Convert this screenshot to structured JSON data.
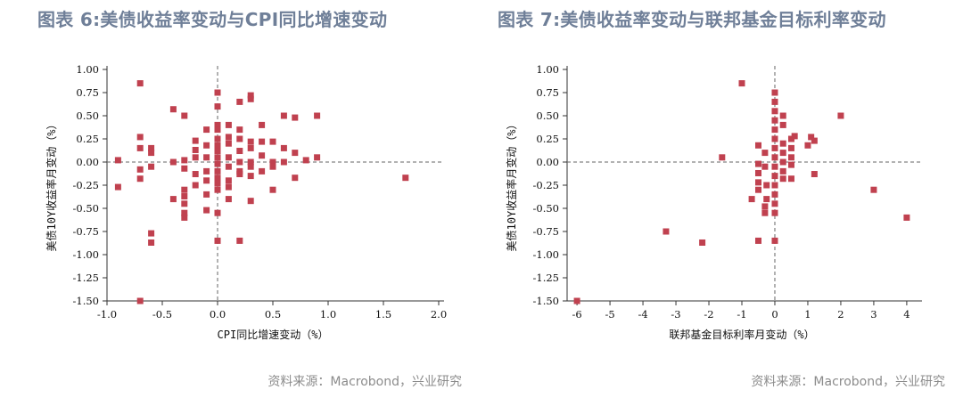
{
  "colors": {
    "marker": "#c0414f",
    "axis": "#333333",
    "title": "#6f7f98",
    "source": "#8c8c8c"
  },
  "source_text": "资料来源：Macrobond，兴业研究",
  "chart_data": [
    {
      "type": "scatter",
      "title": "图表 6:美债收益率变动与CPI同比增速变动",
      "xlabel": "CPI同比增速变动（%）",
      "ylabel": "美债10Y收益率月变动（%）",
      "xlim": [
        -1.0,
        2.0
      ],
      "ylim": [
        -1.5,
        1.0
      ],
      "x_ticks": [
        "-1.0",
        "-0.5",
        "0.0",
        "0.5",
        "1.0",
        "1.5",
        "2.0"
      ],
      "y_ticks": [
        "1.00",
        "0.75",
        "0.50",
        "0.25",
        "0.00",
        "-0.25",
        "-0.50",
        "-0.75",
        "-1.00",
        "-1.25",
        "-1.50"
      ],
      "reference_lines": {
        "x": 0,
        "y": 0
      },
      "points": [
        [
          -0.7,
          0.85
        ],
        [
          -0.7,
          -1.5
        ],
        [
          -0.9,
          0.02
        ],
        [
          -0.9,
          -0.27
        ],
        [
          -0.7,
          0.27
        ],
        [
          -0.7,
          0.15
        ],
        [
          -0.7,
          -0.08
        ],
        [
          -0.7,
          -0.18
        ],
        [
          -0.6,
          0.15
        ],
        [
          -0.6,
          0.1
        ],
        [
          -0.6,
          -0.05
        ],
        [
          -0.6,
          -0.77
        ],
        [
          -0.6,
          -0.87
        ],
        [
          -0.4,
          0.57
        ],
        [
          -0.4,
          0.0
        ],
        [
          -0.4,
          -0.4
        ],
        [
          -0.3,
          0.5
        ],
        [
          -0.3,
          0.02
        ],
        [
          -0.3,
          -0.07
        ],
        [
          -0.3,
          -0.3
        ],
        [
          -0.3,
          -0.37
        ],
        [
          -0.3,
          -0.45
        ],
        [
          -0.3,
          -0.55
        ],
        [
          -0.3,
          -0.6
        ],
        [
          -0.2,
          0.23
        ],
        [
          -0.2,
          0.13
        ],
        [
          -0.2,
          0.05
        ],
        [
          -0.2,
          -0.13
        ],
        [
          -0.2,
          -0.25
        ],
        [
          -0.1,
          0.35
        ],
        [
          -0.1,
          0.18
        ],
        [
          -0.1,
          0.05
        ],
        [
          -0.1,
          -0.1
        ],
        [
          -0.1,
          -0.2
        ],
        [
          -0.1,
          -0.35
        ],
        [
          -0.1,
          -0.52
        ],
        [
          0.0,
          0.75
        ],
        [
          0.0,
          0.6
        ],
        [
          0.0,
          0.4
        ],
        [
          0.0,
          0.35
        ],
        [
          0.0,
          0.25
        ],
        [
          0.0,
          0.18
        ],
        [
          0.0,
          0.12
        ],
        [
          0.0,
          0.05
        ],
        [
          0.0,
          -0.02
        ],
        [
          0.0,
          -0.1
        ],
        [
          0.0,
          -0.17
        ],
        [
          0.0,
          -0.23
        ],
        [
          0.0,
          -0.3
        ],
        [
          0.0,
          -0.55
        ],
        [
          0.0,
          -0.85
        ],
        [
          0.1,
          0.4
        ],
        [
          0.1,
          0.27
        ],
        [
          0.1,
          0.2
        ],
        [
          0.1,
          0.05
        ],
        [
          0.1,
          -0.05
        ],
        [
          0.1,
          -0.2
        ],
        [
          0.1,
          -0.27
        ],
        [
          0.1,
          -0.4
        ],
        [
          0.2,
          0.65
        ],
        [
          0.2,
          0.35
        ],
        [
          0.2,
          0.25
        ],
        [
          0.2,
          0.12
        ],
        [
          0.2,
          0.0
        ],
        [
          0.2,
          -0.1
        ],
        [
          0.2,
          -0.13
        ],
        [
          0.2,
          -0.85
        ],
        [
          0.3,
          0.72
        ],
        [
          0.3,
          0.68
        ],
        [
          0.3,
          0.22
        ],
        [
          0.3,
          0.15
        ],
        [
          0.3,
          0.0
        ],
        [
          0.3,
          -0.05
        ],
        [
          0.3,
          -0.15
        ],
        [
          0.3,
          -0.42
        ],
        [
          0.4,
          0.4
        ],
        [
          0.4,
          0.22
        ],
        [
          0.4,
          0.07
        ],
        [
          0.4,
          -0.1
        ],
        [
          0.5,
          0.22
        ],
        [
          0.5,
          0.0
        ],
        [
          0.5,
          -0.05
        ],
        [
          0.5,
          -0.3
        ],
        [
          0.6,
          0.5
        ],
        [
          0.6,
          0.15
        ],
        [
          0.6,
          0.0
        ],
        [
          0.7,
          0.48
        ],
        [
          0.7,
          0.1
        ],
        [
          0.7,
          -0.17
        ],
        [
          0.8,
          0.02
        ],
        [
          0.9,
          0.5
        ],
        [
          0.9,
          0.05
        ],
        [
          1.7,
          -0.17
        ]
      ]
    },
    {
      "type": "scatter",
      "title": "图表 7:美债收益率变动与联邦基金目标利率变动",
      "xlabel": "联邦基金目标利率月变动（%）",
      "ylabel": "美债10Y收益率月变动（%）",
      "xlim": [
        -6.3,
        4.3
      ],
      "ylim": [
        -1.5,
        1.0
      ],
      "x_ticks": [
        "-6",
        "-5",
        "-4",
        "-3",
        "-2",
        "-1",
        "0",
        "1",
        "2",
        "3",
        "4"
      ],
      "y_ticks": [
        "1.00",
        "0.75",
        "0.50",
        "0.25",
        "0.00",
        "-0.25",
        "-0.50",
        "-0.75",
        "-1.00",
        "-1.25",
        "-1.50"
      ],
      "reference_lines": {
        "x": 0,
        "y": 0
      },
      "points": [
        [
          -6.0,
          -1.5
        ],
        [
          -3.3,
          -0.75
        ],
        [
          -2.2,
          -0.87
        ],
        [
          -1.6,
          0.05
        ],
        [
          -1.0,
          0.85
        ],
        [
          -0.7,
          -0.4
        ],
        [
          -0.5,
          -0.85
        ],
        [
          -0.5,
          0.18
        ],
        [
          -0.5,
          -0.02
        ],
        [
          -0.5,
          -0.12
        ],
        [
          -0.5,
          -0.22
        ],
        [
          -0.5,
          -0.3
        ],
        [
          -0.3,
          -0.05
        ],
        [
          -0.3,
          -0.48
        ],
        [
          -0.3,
          -0.55
        ],
        [
          -0.3,
          0.1
        ],
        [
          -0.25,
          -0.25
        ],
        [
          -0.25,
          -0.4
        ],
        [
          0.0,
          0.75
        ],
        [
          0.0,
          0.65
        ],
        [
          0.0,
          0.55
        ],
        [
          0.0,
          0.45
        ],
        [
          0.0,
          0.35
        ],
        [
          0.0,
          0.25
        ],
        [
          0.0,
          0.15
        ],
        [
          0.0,
          0.05
        ],
        [
          0.0,
          -0.05
        ],
        [
          0.0,
          -0.15
        ],
        [
          0.0,
          -0.25
        ],
        [
          0.0,
          -0.35
        ],
        [
          0.0,
          -0.45
        ],
        [
          0.0,
          -0.55
        ],
        [
          0.0,
          -0.85
        ],
        [
          0.25,
          0.5
        ],
        [
          0.25,
          0.4
        ],
        [
          0.25,
          0.2
        ],
        [
          0.25,
          0.1
        ],
        [
          0.25,
          0.0
        ],
        [
          0.25,
          -0.1
        ],
        [
          0.25,
          -0.18
        ],
        [
          0.5,
          0.25
        ],
        [
          0.5,
          0.15
        ],
        [
          0.5,
          0.05
        ],
        [
          0.5,
          -0.03
        ],
        [
          0.5,
          -0.18
        ],
        [
          0.6,
          0.28
        ],
        [
          1.0,
          0.18
        ],
        [
          1.1,
          0.27
        ],
        [
          1.2,
          0.23
        ],
        [
          1.2,
          -0.13
        ],
        [
          2.0,
          0.5
        ],
        [
          3.0,
          -0.3
        ],
        [
          4.0,
          -0.6
        ]
      ]
    }
  ]
}
